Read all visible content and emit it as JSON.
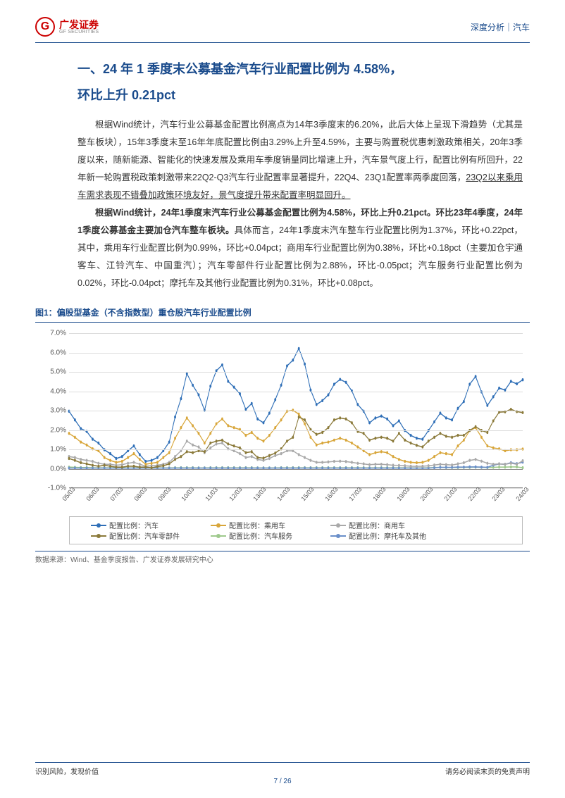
{
  "header": {
    "logo_cn": "广发证券",
    "logo_en": "GF SECURITIES",
    "right": "深度分析｜汽车"
  },
  "title_line1": "一、24 年 1 季度末公募基金汽车行业配置比例为 4.58%，",
  "title_line2": "环比上升 0.21pct",
  "para1": "根据Wind统计，汽车行业公募基金配置比例高点为14年3季度末的6.20%，此后大体上呈现下滑趋势（尤其是整车板块），15年3季度末至16年年底配置比例由3.29%上升至4.59%，主要与购置税优惠刺激政策相关，20年3季度以来，随新能源、智能化的快速发展及乘用车季度销量同比增速上升，汽车景气度上行，配置比例有所回升，22年新一轮购置税政策刺激带来22Q2-Q3汽车行业配置率显著提升，22Q4、23Q1配置率两季度回落，",
  "para1_u": "23Q2以来乘用车需求表现不错叠加政策环境友好，景气度提升带来配置率明显回升。",
  "para2_b": "根据Wind统计，24年1季度末汽车行业公募基金配置比例为4.58%，环比上升0.21pct。环比23年4季度，24年1季度公募基金主要加仓汽车整车板块。",
  "para2_rest": "具体而言，24年1季度末汽车整车行业配置比例为1.37%，环比+0.22pct，其中，乘用车行业配置比例为0.99%，环比+0.04pct；商用车行业配置比例为0.38%，环比+0.18pct（主要加仓宇通客车、江铃汽车、中国重汽）；汽车零部件行业配置比例为2.88%，环比-0.05pct；汽车服务行业配置比例为0.02%，环比-0.04pct；摩托车及其他行业配置比例为0.31%，环比+0.08pct。",
  "figure": {
    "title": "图1：偏股型基金（不含指数型）重仓股汽车行业配置比例",
    "source": "数据来源：Wind、基金季度报告、广发证券发展研究中心",
    "y_ticks": [
      "-1.0%",
      "0.0%",
      "1.0%",
      "2.0%",
      "3.0%",
      "4.0%",
      "5.0%",
      "6.0%",
      "7.0%"
    ],
    "y_min": -1.0,
    "y_max": 7.0,
    "x_labels": [
      "05/03",
      "06/03",
      "07/03",
      "08/03",
      "09/03",
      "10/03",
      "11/03",
      "12/03",
      "13/03",
      "14/03",
      "15/03",
      "16/03",
      "17/03",
      "18/03",
      "19/03",
      "20/03",
      "21/03",
      "22/03",
      "23/03",
      "24/03"
    ],
    "colors": {
      "auto": "#2f6fb7",
      "pass": "#d8a63a",
      "comm": "#a9a9a9",
      "parts": "#8b7a3a",
      "service": "#9ec98c",
      "moto": "#6a8fc9",
      "grid": "#dddddd",
      "axis": "#888888"
    },
    "legend": [
      {
        "label": "配置比例：汽车",
        "key": "auto"
      },
      {
        "label": "配置比例：乘用车",
        "key": "pass"
      },
      {
        "label": "配置比例：商用车",
        "key": "comm"
      },
      {
        "label": "配置比例：汽车零部件",
        "key": "parts"
      },
      {
        "label": "配置比例：汽车服务",
        "key": "service"
      },
      {
        "label": "配置比例：摩托车及其他",
        "key": "moto"
      }
    ],
    "n_points": 78,
    "series": {
      "auto": [
        2.95,
        2.5,
        2.05,
        1.9,
        1.5,
        1.3,
        0.95,
        0.75,
        0.5,
        0.6,
        0.9,
        1.15,
        0.7,
        0.35,
        0.4,
        0.55,
        0.9,
        1.35,
        2.65,
        3.6,
        4.9,
        4.3,
        3.8,
        3.0,
        4.25,
        5.05,
        5.35,
        4.5,
        4.2,
        3.85,
        3.05,
        3.35,
        2.55,
        2.35,
        2.85,
        3.55,
        4.3,
        5.3,
        5.6,
        6.2,
        5.4,
        4.05,
        3.3,
        3.5,
        3.8,
        4.35,
        4.6,
        4.45,
        4.0,
        3.3,
        2.95,
        2.35,
        2.6,
        2.7,
        2.55,
        2.2,
        2.45,
        1.95,
        1.7,
        1.55,
        1.5,
        1.95,
        2.4,
        2.85,
        2.6,
        2.5,
        3.1,
        3.45,
        4.35,
        4.75,
        3.95,
        3.25,
        3.7,
        4.15,
        4.05,
        4.5,
        4.37,
        4.58
      ],
      "pass": [
        1.8,
        1.6,
        1.35,
        1.2,
        1.0,
        0.9,
        0.55,
        0.4,
        0.3,
        0.35,
        0.55,
        0.75,
        0.45,
        0.2,
        0.25,
        0.3,
        0.55,
        0.8,
        1.55,
        2.1,
        2.6,
        2.2,
        1.8,
        1.3,
        1.8,
        2.3,
        2.55,
        2.2,
        2.1,
        2.0,
        1.7,
        1.85,
        1.55,
        1.4,
        1.7,
        2.1,
        2.5,
        2.95,
        3.0,
        2.8,
        2.3,
        1.6,
        1.2,
        1.3,
        1.35,
        1.45,
        1.55,
        1.45,
        1.3,
        1.1,
        0.9,
        0.7,
        0.8,
        0.85,
        0.8,
        0.6,
        0.45,
        0.35,
        0.3,
        0.28,
        0.3,
        0.4,
        0.6,
        0.8,
        0.75,
        0.7,
        1.15,
        1.45,
        1.95,
        2.1,
        1.6,
        1.15,
        1.05,
        1.0,
        0.9,
        0.95,
        0.95,
        0.99
      ],
      "comm": [
        0.6,
        0.55,
        0.45,
        0.4,
        0.35,
        0.25,
        0.2,
        0.2,
        0.15,
        0.18,
        0.25,
        0.3,
        0.2,
        0.1,
        0.12,
        0.15,
        0.2,
        0.3,
        0.6,
        0.9,
        1.4,
        1.2,
        1.1,
        0.8,
        1.05,
        1.25,
        1.3,
        1.0,
        0.9,
        0.75,
        0.55,
        0.6,
        0.45,
        0.4,
        0.5,
        0.65,
        0.75,
        0.9,
        0.9,
        0.7,
        0.55,
        0.4,
        0.3,
        0.3,
        0.32,
        0.35,
        0.36,
        0.34,
        0.3,
        0.25,
        0.22,
        0.18,
        0.2,
        0.2,
        0.18,
        0.15,
        0.14,
        0.12,
        0.1,
        0.09,
        0.1,
        0.12,
        0.16,
        0.2,
        0.18,
        0.16,
        0.22,
        0.28,
        0.4,
        0.45,
        0.36,
        0.25,
        0.2,
        0.22,
        0.2,
        0.25,
        0.2,
        0.38
      ],
      "parts": [
        0.5,
        0.4,
        0.28,
        0.22,
        0.15,
        0.1,
        0.15,
        0.1,
        0.05,
        0.05,
        0.1,
        0.1,
        0.05,
        0.05,
        0.02,
        0.08,
        0.12,
        0.22,
        0.45,
        0.6,
        0.85,
        0.8,
        0.9,
        0.85,
        1.3,
        1.4,
        1.45,
        1.25,
        1.15,
        1.05,
        0.8,
        0.85,
        0.55,
        0.52,
        0.65,
        0.78,
        1.0,
        1.4,
        1.6,
        2.65,
        2.5,
        2.0,
        1.75,
        1.85,
        2.1,
        2.5,
        2.6,
        2.55,
        2.35,
        1.9,
        1.8,
        1.45,
        1.55,
        1.6,
        1.55,
        1.4,
        1.8,
        1.45,
        1.3,
        1.18,
        1.1,
        1.4,
        1.6,
        1.8,
        1.65,
        1.6,
        1.7,
        1.7,
        1.95,
        2.15,
        1.95,
        1.85,
        2.45,
        2.9,
        2.92,
        3.05,
        2.93,
        2.88
      ],
      "service": [
        0.05,
        0.04,
        0.03,
        0.03,
        0.02,
        0.02,
        0.02,
        0.02,
        0.01,
        0.01,
        0.01,
        0.01,
        0.01,
        0.01,
        0.01,
        0.01,
        0.01,
        0.01,
        0.02,
        0.02,
        0.02,
        0.02,
        0.01,
        0.01,
        0.02,
        0.02,
        0.02,
        0.02,
        0.02,
        0.02,
        0.02,
        0.02,
        0.01,
        0.01,
        0.01,
        0.01,
        0.02,
        0.02,
        0.02,
        0.02,
        0.02,
        0.02,
        0.02,
        0.02,
        0.02,
        0.02,
        0.02,
        0.02,
        0.02,
        0.02,
        0.02,
        0.01,
        0.02,
        0.02,
        0.02,
        0.02,
        0.02,
        0.02,
        0.01,
        0.01,
        0.01,
        0.02,
        0.03,
        0.04,
        0.03,
        0.03,
        0.03,
        0.04,
        0.04,
        0.05,
        0.04,
        0.03,
        0.04,
        0.05,
        0.05,
        0.06,
        0.06,
        0.02
      ],
      "moto": [
        0.0,
        0.0,
        0.0,
        0.0,
        0.0,
        0.0,
        0.0,
        0.0,
        0.0,
        0.0,
        0.0,
        0.0,
        0.0,
        0.0,
        0.0,
        0.0,
        0.0,
        0.0,
        0.0,
        0.0,
        0.0,
        0.0,
        0.0,
        0.0,
        0.0,
        0.0,
        0.0,
        0.0,
        0.0,
        0.0,
        0.0,
        0.0,
        0.0,
        0.0,
        0.0,
        0.0,
        0.0,
        0.0,
        0.0,
        0.0,
        0.0,
        0.0,
        0.0,
        0.0,
        0.0,
        0.0,
        0.0,
        0.0,
        0.0,
        0.0,
        0.0,
        0.0,
        0.0,
        0.0,
        0.0,
        0.0,
        0.0,
        0.0,
        0.0,
        0.0,
        0.0,
        0.0,
        0.02,
        0.04,
        0.04,
        0.04,
        0.05,
        0.05,
        0.06,
        0.06,
        0.05,
        0.04,
        0.15,
        0.22,
        0.2,
        0.28,
        0.23,
        0.31
      ]
    }
  },
  "footer": {
    "left": "识别风险，发现价值",
    "right": "请务必阅读末页的免责声明",
    "page": "7 / 26"
  }
}
